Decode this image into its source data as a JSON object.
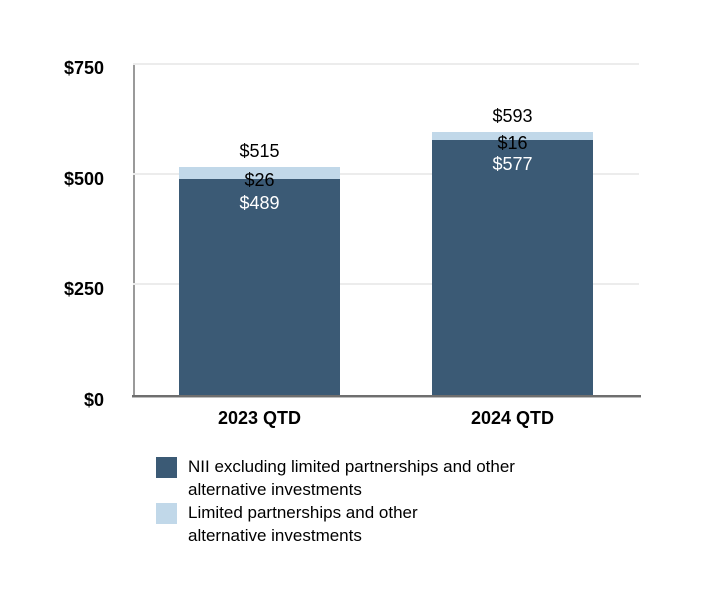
{
  "chart_data": {
    "type": "bar",
    "stacked": true,
    "categories": [
      "2023 QTD",
      "2024 QTD"
    ],
    "series": [
      {
        "name": "NII excluding limited partnerships and other alternative investments",
        "label_lines": [
          "NII excluding limited partnerships and other",
          "alternative investments"
        ],
        "values": [
          489,
          577
        ],
        "color": "#3B5A75",
        "label_color": "#FFFFFF"
      },
      {
        "name": "Limited partnerships and other alternative investments",
        "label_lines": [
          "Limited partnerships and other",
          "alternative investments"
        ],
        "values": [
          26,
          16
        ],
        "color": "#C1D8E9",
        "label_color": "#000000"
      }
    ],
    "totals": [
      515,
      593
    ],
    "total_labels": [
      "$515",
      "$593"
    ],
    "segment_labels": [
      [
        "$489",
        "$577"
      ],
      [
        "$26",
        "$16"
      ]
    ],
    "value_prefix": "$",
    "xlabel": "",
    "ylabel": "",
    "y_axis": {
      "ticks": [
        750,
        500,
        250,
        0
      ],
      "tick_labels": [
        "$750",
        "$500",
        "$250",
        "$0"
      ],
      "ylim": [
        0,
        750
      ],
      "grid": true
    },
    "legend_position": "bottom-left"
  }
}
